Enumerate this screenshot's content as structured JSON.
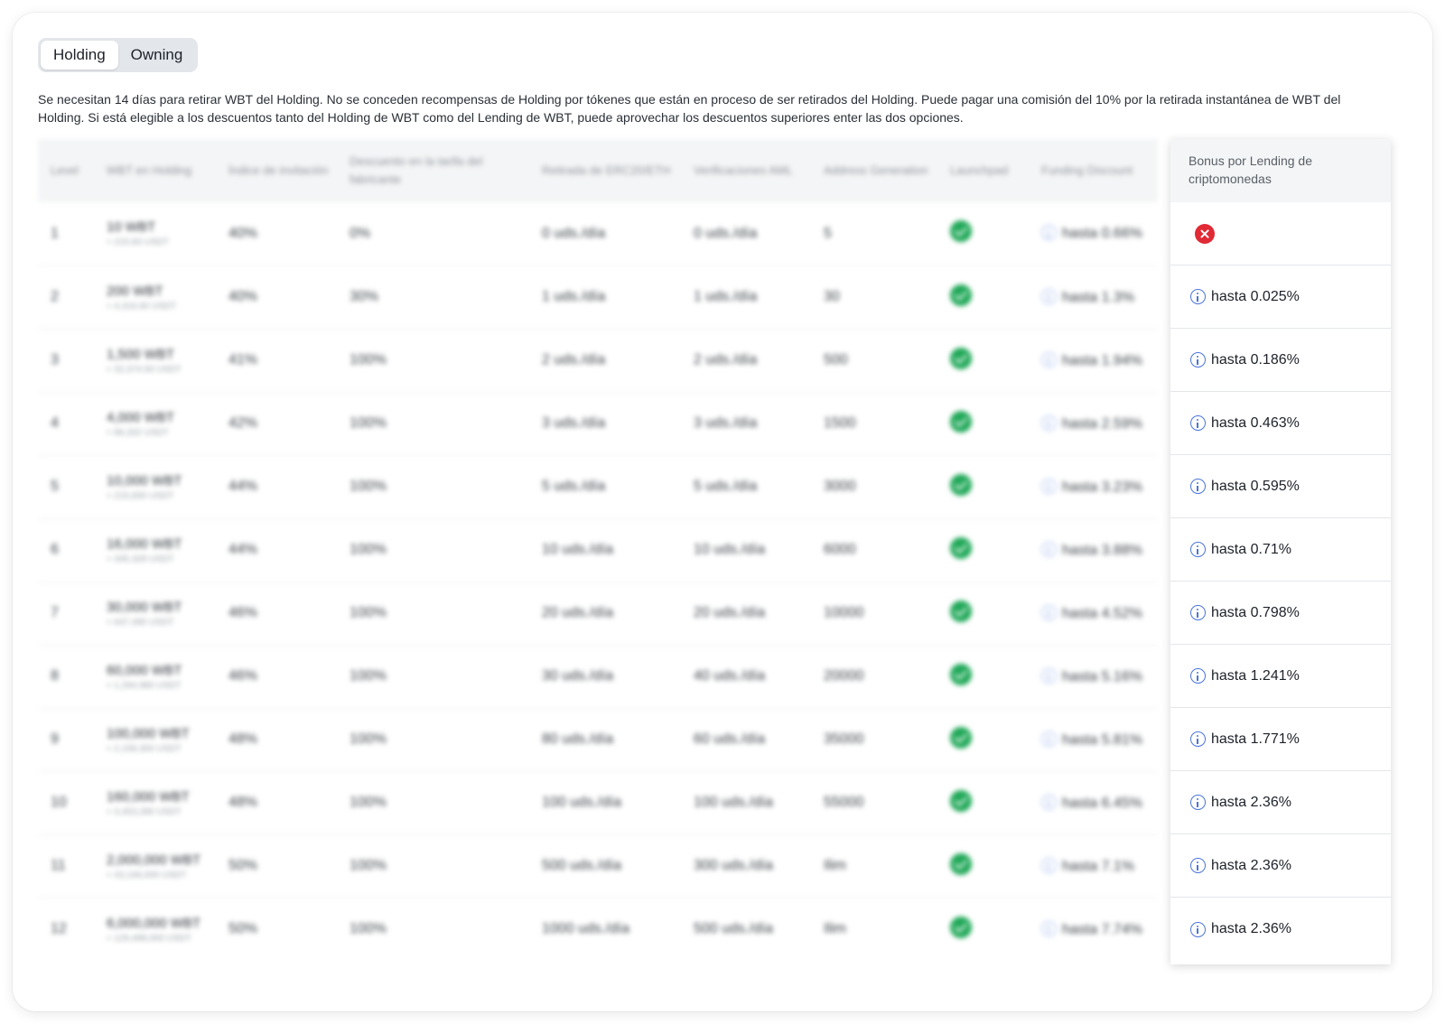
{
  "tabs": [
    {
      "label": "Holding",
      "active": true
    },
    {
      "label": "Owning",
      "active": false
    }
  ],
  "notice": "Se necesitan 14 días para retirar WBT del Holding. No se conceden recompensas de Holding por tókenes que están en proceso de ser retirados del Holding. Puede pagar una comisión del 10% por la retirada instantánea de WBT del Holding. Si está elegible a los descuentos tanto del Holding de WBT como del Lending de WBT, puede aprovechar los descuentos superiores enter las dos opciones.",
  "table": {
    "columns": [
      "Level",
      "WBT en Holding",
      "Índice de invitación",
      "Descuento en la tarifa del fabricante",
      "Retirada de ERC20/ETH",
      "Verificaciones AML",
      "Address Generation",
      "Launchpad",
      "Funding Discount"
    ],
    "bonus_header": "Bonus por Lending de criptomonedas",
    "rows": [
      {
        "level": "1",
        "wbt": "10 WBT",
        "usdt": "≈ 215.83 USDT",
        "invite": "40%",
        "maker": "0%",
        "erc20": "0 uds./día",
        "aml": "0 uds./día",
        "address": "5",
        "funding": "hasta 0.66%",
        "bonus": ""
      },
      {
        "level": "2",
        "wbt": "200 WBT",
        "usdt": "≈ 4,316.60 USDT",
        "invite": "40%",
        "maker": "30%",
        "erc20": "1 uds./día",
        "aml": "1 uds./día",
        "address": "30",
        "funding": "hasta 1.3%",
        "bonus": "hasta 0.025%"
      },
      {
        "level": "3",
        "wbt": "1,500 WBT",
        "usdt": "≈ 32,374.50 USDT",
        "invite": "41%",
        "maker": "100%",
        "erc20": "2 uds./día",
        "aml": "2 uds./día",
        "address": "500",
        "funding": "hasta 1.94%",
        "bonus": "hasta 0.186%"
      },
      {
        "level": "4",
        "wbt": "4,000 WBT",
        "usdt": "≈ 86,332 USDT",
        "invite": "42%",
        "maker": "100%",
        "erc20": "3 uds./día",
        "aml": "3 uds./día",
        "address": "1500",
        "funding": "hasta 2.59%",
        "bonus": "hasta 0.463%"
      },
      {
        "level": "5",
        "wbt": "10,000 WBT",
        "usdt": "≈ 215,830 USDT",
        "invite": "44%",
        "maker": "100%",
        "erc20": "5 uds./día",
        "aml": "5 uds./día",
        "address": "3000",
        "funding": "hasta 3.23%",
        "bonus": "hasta 0.595%"
      },
      {
        "level": "6",
        "wbt": "16,000 WBT",
        "usdt": "≈ 345,328 USDT",
        "invite": "44%",
        "maker": "100%",
        "erc20": "10 uds./día",
        "aml": "10 uds./día",
        "address": "6000",
        "funding": "hasta 3.88%",
        "bonus": "hasta 0.71%"
      },
      {
        "level": "7",
        "wbt": "30,000 WBT",
        "usdt": "≈ 647,490 USDT",
        "invite": "46%",
        "maker": "100%",
        "erc20": "20 uds./día",
        "aml": "20 uds./día",
        "address": "10000",
        "funding": "hasta 4.52%",
        "bonus": "hasta 0.798%"
      },
      {
        "level": "8",
        "wbt": "60,000 WBT",
        "usdt": "≈ 1,294,980 USDT",
        "invite": "46%",
        "maker": "100%",
        "erc20": "30 uds./día",
        "aml": "40 uds./día",
        "address": "20000",
        "funding": "hasta 5.16%",
        "bonus": "hasta 1.241%"
      },
      {
        "level": "9",
        "wbt": "100,000 WBT",
        "usdt": "≈ 2,158,300 USDT",
        "invite": "48%",
        "maker": "100%",
        "erc20": "80 uds./día",
        "aml": "60 uds./día",
        "address": "35000",
        "funding": "hasta 5.81%",
        "bonus": "hasta 1.771%"
      },
      {
        "level": "10",
        "wbt": "160,000 WBT",
        "usdt": "≈ 3,453,280 USDT",
        "invite": "48%",
        "maker": "100%",
        "erc20": "100 uds./día",
        "aml": "100 uds./día",
        "address": "55000",
        "funding": "hasta 6.45%",
        "bonus": "hasta 2.36%"
      },
      {
        "level": "11",
        "wbt": "2,000,000 WBT",
        "usdt": "≈ 43,166,000 USDT",
        "invite": "50%",
        "maker": "100%",
        "erc20": "500 uds./día",
        "aml": "300 uds./día",
        "address": "Ilim",
        "funding": "hasta 7.1%",
        "bonus": "hasta 2.36%"
      },
      {
        "level": "12",
        "wbt": "6,000,000 WBT",
        "usdt": "≈ 129,498,000 USDT",
        "invite": "50%",
        "maker": "100%",
        "erc20": "1000 uds./día",
        "aml": "500 uds./día",
        "address": "Ilim",
        "funding": "hasta 7.74%",
        "bonus": "hasta 2.36%"
      }
    ]
  },
  "icons": {
    "launchpad": "check-circle-icon",
    "info": "info-icon",
    "no_bonus": "x-circle-icon"
  },
  "colors": {
    "check": "#20a858",
    "info": "#4a74d9",
    "no_bonus": "#e02a35"
  }
}
